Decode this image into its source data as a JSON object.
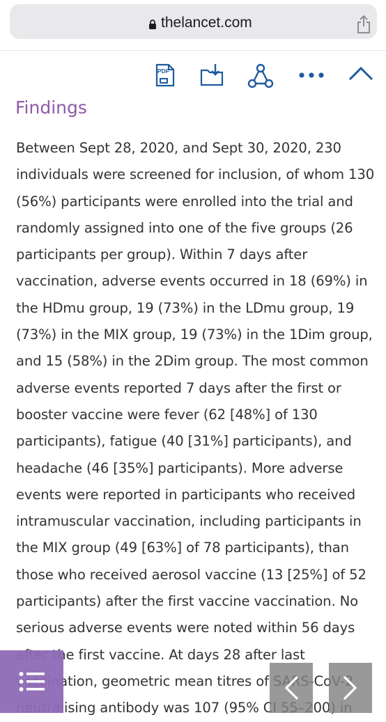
{
  "browser": {
    "domain": "thelancet.com"
  },
  "toolbar": {
    "icons": [
      "pdf-icon",
      "download-folder-icon",
      "share-network-icon",
      "more-icon",
      "collapse-chevron-icon"
    ],
    "pdf_label": "PDF"
  },
  "article": {
    "section_heading": "Findings",
    "lines": [
      "Between Sept 28, 2020, and Sept 30, 2020, 230",
      "individuals were screened for inclusion, of whom 130",
      "(56%) participants were enrolled into the trial and",
      "randomly assigned into one of the five groups (26",
      "participants per group). Within 7 days after",
      "vaccination, adverse events occurred in 18 (69%) in",
      "the HDmu group, 19 (73%) in the LDmu group, 19",
      "(73%) in the MIX group, 19 (73%) in the 1Dim group,",
      "and 15 (58%) in the 2Dim group. The most common",
      "adverse events reported 7 days after the first or",
      "booster vaccine were fever (62 [48%] of 130",
      "participants), fatigue (40 [31%] participants), and",
      "headache (46 [35%] participants). More adverse",
      "events were reported in participants who received",
      "intramuscular vaccination, including participants in",
      "the MIX group (49 [63%] of 78 participants), than",
      "those who received aerosol vaccine (13 [25%] of 52",
      "participants) after the first vaccine vaccination. No",
      "serious adverse events were noted within 56 days",
      "after the first vaccine. At days 28 after last",
      "vaccination, geometric mean titres of SARS-CoV-2",
      "neutralising antibody was 107 (95% CI 55–200) in"
    ]
  },
  "controls": {
    "outline_icon": "list-icon",
    "prev_icon": "chevron-left-icon",
    "next_icon": "chevron-right-icon"
  },
  "colors": {
    "accent_purple": "#8d5aa8",
    "toolbar_blue": "#1d5a9c",
    "outline_button": "#8f6bb7",
    "nav_button_gray": "#828282"
  }
}
